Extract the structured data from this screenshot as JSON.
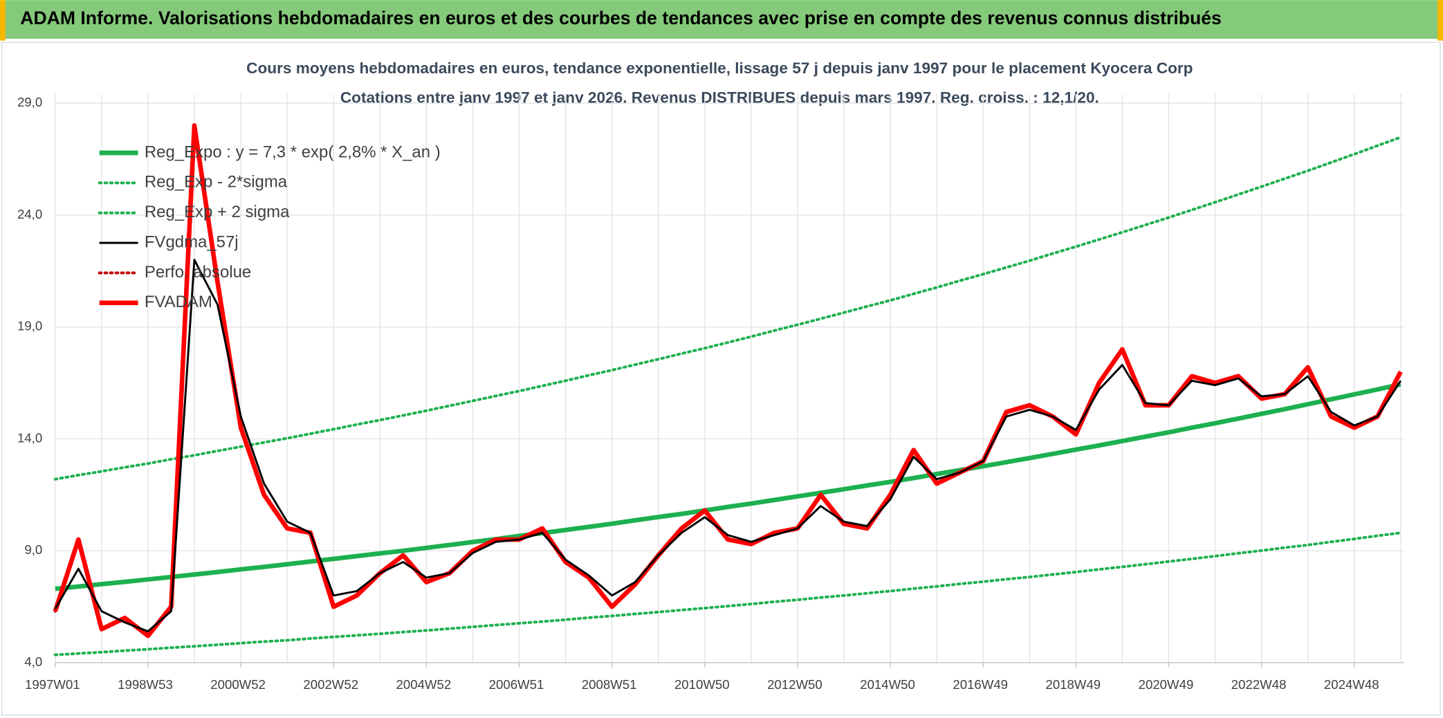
{
  "header": {
    "title": "ADAM Informe. Valorisations hebdomadaires en euros et des courbes de tendances avec prise en compte des revenus connus distribués"
  },
  "chart_data": {
    "type": "line",
    "title": "Cours moyens hebdomadaires en euros, tendance exponentielle, lissage 57 j depuis janv 1997 pour le placement Kyocera Corp",
    "subtitle": "Cotations entre janv 1997 et janv 2026. Revenus DISTRIBUES depuis mars 1997. Reg. croiss. : 12,1/20.",
    "categories": [
      "1997W01",
      null,
      null,
      null,
      "1998W53",
      null,
      null,
      null,
      "2000W52",
      null,
      null,
      null,
      "2002W52",
      null,
      null,
      null,
      "2004W52",
      null,
      null,
      null,
      "2006W51",
      null,
      null,
      null,
      "2008W51",
      null,
      null,
      null,
      "2010W50",
      null,
      null,
      null,
      "2012W50",
      null,
      null,
      null,
      "2014W50",
      null,
      null,
      null,
      "2016W49",
      null,
      null,
      null,
      "2018W49",
      null,
      null,
      null,
      "2020W49",
      null,
      null,
      null,
      "2022W48",
      null,
      null,
      null,
      "2024W48",
      null,
      null
    ],
    "ylim": [
      4,
      29
    ],
    "yticks": [
      {
        "value": 4,
        "label": "4,0"
      },
      {
        "value": 9,
        "label": "9,0"
      },
      {
        "value": 14,
        "label": "14,0"
      },
      {
        "value": 19,
        "label": "19,0"
      },
      {
        "value": 24,
        "label": "24,0"
      },
      {
        "value": 29,
        "label": "29,0"
      }
    ],
    "grid": true,
    "legend": "top-left",
    "series": [
      {
        "name": "Reg_Expo : y = 7,3 * exp( 2,8% *  X_an )",
        "color": "#1db04f",
        "style": "thick",
        "values": [
          7.3,
          7.4,
          7.51,
          7.61,
          7.72,
          7.83,
          7.94,
          8.05,
          8.17,
          8.28,
          8.4,
          8.52,
          8.64,
          8.76,
          8.88,
          9.0,
          9.13,
          9.26,
          9.39,
          9.52,
          9.66,
          9.79,
          9.93,
          10.07,
          10.21,
          10.36,
          10.51,
          10.65,
          10.8,
          10.96,
          11.11,
          11.27,
          11.43,
          11.59,
          11.75,
          11.92,
          12.08,
          12.25,
          12.43,
          12.6,
          12.78,
          12.96,
          13.14,
          13.33,
          13.52,
          13.71,
          13.9,
          14.1,
          14.29,
          14.5,
          14.7,
          14.91,
          15.12,
          15.33,
          15.55,
          15.77,
          15.99,
          16.21,
          16.44
        ]
      },
      {
        "name": "Reg_Exp - 2*sigma",
        "color": "#1db04f",
        "style": "dotted",
        "values": [
          4.35,
          4.41,
          4.47,
          4.54,
          4.6,
          4.67,
          4.73,
          4.8,
          4.87,
          4.94,
          5.0,
          5.08,
          5.15,
          5.22,
          5.29,
          5.37,
          5.44,
          5.52,
          5.6,
          5.68,
          5.76,
          5.84,
          5.92,
          6.01,
          6.09,
          6.18,
          6.26,
          6.35,
          6.44,
          6.53,
          6.62,
          6.72,
          6.81,
          6.91,
          7.0,
          7.1,
          7.2,
          7.31,
          7.41,
          7.52,
          7.62,
          7.73,
          7.83,
          7.94,
          8.05,
          8.17,
          8.28,
          8.4,
          8.52,
          8.64,
          8.76,
          8.89,
          9.01,
          9.14,
          9.26,
          9.4,
          9.53,
          9.67,
          9.8
        ]
      },
      {
        "name": "Reg_Exp + 2 sigma",
        "color": "#1db04f",
        "style": "dotted",
        "values": [
          12.2,
          12.38,
          12.55,
          12.73,
          12.9,
          13.09,
          13.27,
          13.46,
          13.65,
          13.84,
          14.03,
          14.23,
          14.43,
          14.64,
          14.84,
          15.05,
          15.26,
          15.48,
          15.7,
          15.92,
          16.14,
          16.37,
          16.6,
          16.84,
          17.07,
          17.32,
          17.56,
          17.81,
          18.05,
          18.31,
          18.57,
          18.84,
          19.1,
          19.37,
          19.64,
          19.92,
          20.19,
          20.48,
          20.77,
          21.07,
          21.36,
          21.66,
          21.96,
          22.28,
          22.59,
          22.91,
          23.23,
          23.56,
          23.89,
          24.23,
          24.57,
          24.92,
          25.27,
          25.63,
          25.98,
          26.35,
          26.72,
          27.1,
          27.48
        ]
      },
      {
        "name": "FVgdma_57j",
        "color": "#000000",
        "style": "thin",
        "values": [
          6.4,
          8.2,
          6.3,
          5.8,
          5.4,
          6.3,
          22,
          20,
          15,
          12,
          10.3,
          9.8,
          7.0,
          7.2,
          8.0,
          8.5,
          7.8,
          8.0,
          8.9,
          9.4,
          9.5,
          9.8,
          8.6,
          7.9,
          7.0,
          7.6,
          8.8,
          9.8,
          10.5,
          9.7,
          9.4,
          9.7,
          10.0,
          11.0,
          10.3,
          10.1,
          11.3,
          13.2,
          12.2,
          12.5,
          13.0,
          15.0,
          15.3,
          15.0,
          14.4,
          16.2,
          17.3,
          15.6,
          15.5,
          16.6,
          16.4,
          16.7,
          15.9,
          16.0,
          16.8,
          15.2,
          14.6,
          15.0,
          16.6
        ]
      },
      {
        "name": "Perfo. absolue",
        "color": "#c00000",
        "style": "dotted",
        "values": [
          6.3,
          9.5,
          5.5,
          6.0,
          5.2,
          6.5,
          28.0,
          21.0,
          14.5,
          11.5,
          10.0,
          9.8,
          6.5,
          7.0,
          8.0,
          8.8,
          7.6,
          8.0,
          9.0,
          9.5,
          9.5,
          10.0,
          8.5,
          7.8,
          6.5,
          7.5,
          8.8,
          10.0,
          10.8,
          9.5,
          9.3,
          9.8,
          10.0,
          11.5,
          10.2,
          10.0,
          11.5,
          13.5,
          12.0,
          12.5,
          13.0,
          15.2,
          15.5,
          15.0,
          14.2,
          16.5,
          18.0,
          15.5,
          15.5,
          16.8,
          16.5,
          16.8,
          15.8,
          16.0,
          17.2,
          15.0,
          14.5,
          15.0,
          17.0
        ]
      },
      {
        "name": "FVADAM",
        "color": "#ff0000",
        "style": "thick",
        "values": [
          6.3,
          9.5,
          5.5,
          6.0,
          5.2,
          6.5,
          28.0,
          21.0,
          14.5,
          11.5,
          10.0,
          9.8,
          6.5,
          7.0,
          8.0,
          8.8,
          7.6,
          8.0,
          9.0,
          9.5,
          9.5,
          10.0,
          8.5,
          7.8,
          6.5,
          7.5,
          8.8,
          10.0,
          10.8,
          9.5,
          9.3,
          9.8,
          10.0,
          11.5,
          10.2,
          10.0,
          11.5,
          13.5,
          12.0,
          12.5,
          13.0,
          15.2,
          15.5,
          15.0,
          14.2,
          16.5,
          18.0,
          15.5,
          15.5,
          16.8,
          16.5,
          16.8,
          15.8,
          16.0,
          17.2,
          15.0,
          14.5,
          15.0,
          17.0
        ]
      }
    ]
  }
}
